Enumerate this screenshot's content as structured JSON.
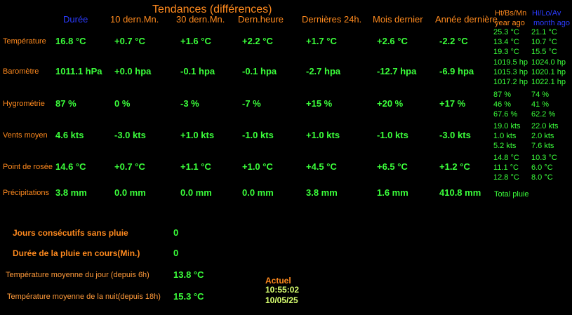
{
  "header": {
    "title": "Tendances (différences)"
  },
  "columns": [
    "Durée",
    "10 dern.Mn.",
    "30 dern.Mn.",
    "Dern.heure",
    "Dernières 24h.",
    "Mois dernier",
    "Année dernière"
  ],
  "side_header": {
    "left": "Ht/Bs/Mn",
    "right": "Hi/Lo/Av",
    "left_sub": "year ago",
    "right_sub": "month ago"
  },
  "rows": [
    {
      "label": "Température",
      "values": [
        "16.8 °C",
        "+0.7 °C",
        "+1.6 °C",
        "+2.2 °C",
        "+1.7 °C",
        "+2.6 °C",
        "-2.2 °C"
      ],
      "side": [
        [
          "25.3 °C",
          "21.1 °C"
        ],
        [
          "13.4 °C",
          "10.7 °C"
        ],
        [
          "19.3 °C",
          "15.5 °C"
        ]
      ]
    },
    {
      "label": "Baromètre",
      "values": [
        "1011.1 hPa",
        "+0.0 hpa",
        "-0.1 hpa",
        "-0.1 hpa",
        "-2.7 hpa",
        "-12.7 hpa",
        "-6.9 hpa"
      ],
      "side": [
        [
          "1019.5 hp",
          "1024.0 hp"
        ],
        [
          "1015.3 hp",
          "1020.1 hp"
        ],
        [
          "1017.2 hp",
          "1022.1 hp"
        ]
      ]
    },
    {
      "label": "Hygrométrie",
      "values": [
        "87 %",
        "0 %",
        "-3 %",
        "-7 %",
        "+15 %",
        "+20 %",
        "+17 %"
      ],
      "side": [
        [
          "87 %",
          "74 %"
        ],
        [
          "46 %",
          "41 %"
        ],
        [
          "67.6 %",
          "62.2 %"
        ]
      ]
    },
    {
      "label": "Vents moyen",
      "values": [
        "4.6 kts",
        "-3.0 kts",
        "+1.0 kts",
        "-1.0 kts",
        "+1.0 kts",
        "-1.0 kts",
        "-3.0 kts"
      ],
      "side": [
        [
          "19.0 kts",
          "22.0 kts"
        ],
        [
          "1.0 kts",
          "2.0 kts"
        ],
        [
          "5.2 kts",
          "7.6 kts"
        ]
      ]
    },
    {
      "label": "Point de rosée",
      "values": [
        "14.6 °C",
        "+0.7 °C",
        "+1.1 °C",
        "+1.0 °C",
        "+4.5 °C",
        "+6.5 °C",
        "+1.2 °C"
      ],
      "side": [
        [
          "14.8 °C",
          "10.3 °C"
        ],
        [
          "11.1 °C",
          "6.0 °C"
        ],
        [
          "12.8 °C",
          "8.0 °C"
        ]
      ]
    },
    {
      "label": "Précipitations",
      "values": [
        "3.8 mm",
        "0.0 mm",
        "0.0 mm",
        "0.0 mm",
        "3.8 mm",
        "1.6 mm",
        "410.8 mm"
      ],
      "side_note": "Total pluie"
    }
  ],
  "stats": [
    {
      "label": "Jours consécutifs sans pluie",
      "value": "0"
    },
    {
      "label": "Durée de la pluie en cours(Min.)",
      "value": "0"
    },
    {
      "label": "Température moyenne du jour (depuis 6h)",
      "value": "13.8 °C"
    },
    {
      "label": "Température moyenne de la nuit(depuis 18h)",
      "value": "15.3 °C"
    }
  ],
  "current": {
    "label": "Actuel",
    "time": "10:55:02",
    "date": "10/05/25"
  }
}
